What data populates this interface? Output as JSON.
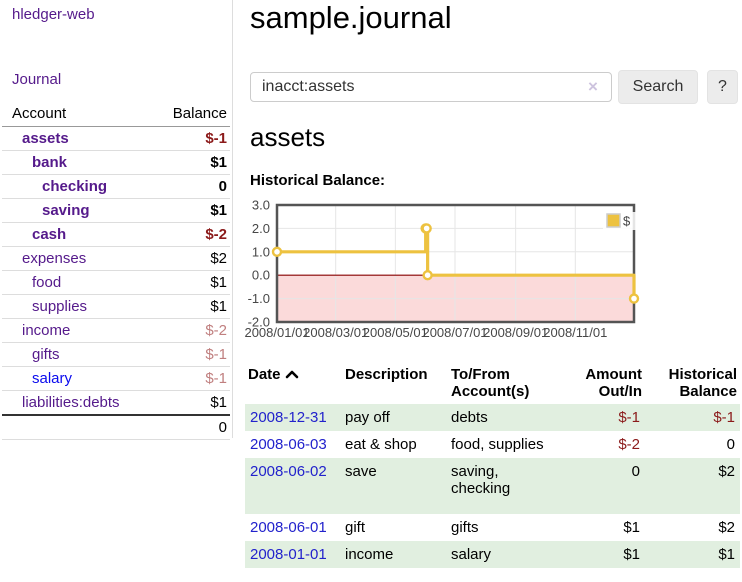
{
  "app": {
    "brand": "hledger-web",
    "nav_journal": "Journal"
  },
  "sidebar": {
    "header": {
      "account": "Account",
      "balance": "Balance"
    },
    "accounts": [
      {
        "name": "assets",
        "balance": "$-1"
      },
      {
        "name": "bank",
        "balance": "$1"
      },
      {
        "name": "checking",
        "balance": "0"
      },
      {
        "name": "saving",
        "balance": "$1"
      },
      {
        "name": "cash",
        "balance": "$-2"
      },
      {
        "name": "expenses",
        "balance": "$2"
      },
      {
        "name": "food",
        "balance": "$1"
      },
      {
        "name": "supplies",
        "balance": "$1"
      },
      {
        "name": "income",
        "balance": "$-2"
      },
      {
        "name": "gifts",
        "balance": "$-1"
      },
      {
        "name": "salary",
        "balance": "$-1"
      },
      {
        "name": "liabilities:debts",
        "balance": "$1"
      }
    ],
    "total": "0"
  },
  "header": {
    "title": "sample.journal"
  },
  "search": {
    "value": "inacct:assets",
    "clear_icon": "×",
    "button_label": "Search",
    "help_label": "?"
  },
  "account_page": {
    "heading": "assets",
    "chart_label": "Historical Balance:"
  },
  "chart_data": {
    "type": "line",
    "step": true,
    "title": "Historical Balance",
    "series": [
      {
        "name": "$",
        "color": "#edc240",
        "points": [
          [
            "2008-01-01",
            1
          ],
          [
            "2008-06-01",
            2
          ],
          [
            "2008-06-02",
            2
          ],
          [
            "2008-06-03",
            0
          ],
          [
            "2008-12-31",
            -1
          ]
        ]
      }
    ],
    "xlim": [
      "2008-01-01",
      "2008-12-31"
    ],
    "ylim": [
      -2,
      3
    ],
    "x_ticks": [
      {
        "date": "2008-01-01",
        "label": "2008/01/01"
      },
      {
        "date": "2008-03-01",
        "label": "2008/03/01"
      },
      {
        "date": "2008-05-01",
        "label": "2008/05/01"
      },
      {
        "date": "2008-07-01",
        "label": "2008/07/01"
      },
      {
        "date": "2008-09-01",
        "label": "2008/09/01"
      },
      {
        "date": "2008-11-01",
        "label": "2008/11/01"
      }
    ],
    "y_ticks": [
      {
        "v": 3,
        "label": "3.0"
      },
      {
        "v": 2,
        "label": "2.0"
      },
      {
        "v": 1,
        "label": "1.0"
      },
      {
        "v": 0,
        "label": "0.0"
      },
      {
        "v": -1,
        "label": "-1.0"
      },
      {
        "v": -2,
        "label": "-2.0"
      }
    ],
    "grid": true,
    "legend_position": "top-right",
    "legend_label": "$",
    "colors": {
      "line": "#edc240",
      "negative_region": "#fbdada",
      "zero_line": "#8b0000",
      "gridline": "#e6e6e6",
      "border": "#545454",
      "tick_text": "#474747"
    }
  },
  "register": {
    "headers": {
      "date": "Date",
      "description": "Description",
      "accounts": "To/From\nAccount(s)",
      "amount": "Amount\nOut/In",
      "balance": "Historical\nBalance"
    },
    "rows": [
      {
        "date": "2008-12-31",
        "description": "pay off",
        "accounts": "debts",
        "amount": "$-1",
        "balance": "$-1"
      },
      {
        "date": "2008-06-03",
        "description": "eat & shop",
        "accounts": "food, supplies",
        "amount": "$-2",
        "balance": "0"
      },
      {
        "date": "2008-06-02",
        "description": "save",
        "accounts": "saving,\nchecking",
        "amount": "0",
        "balance": "$2"
      },
      {
        "date": "2008-06-01",
        "description": "gift",
        "accounts": "gifts",
        "amount": "$1",
        "balance": "$2"
      },
      {
        "date": "2008-01-01",
        "description": "income",
        "accounts": "salary",
        "amount": "$1",
        "balance": "$1"
      }
    ]
  }
}
